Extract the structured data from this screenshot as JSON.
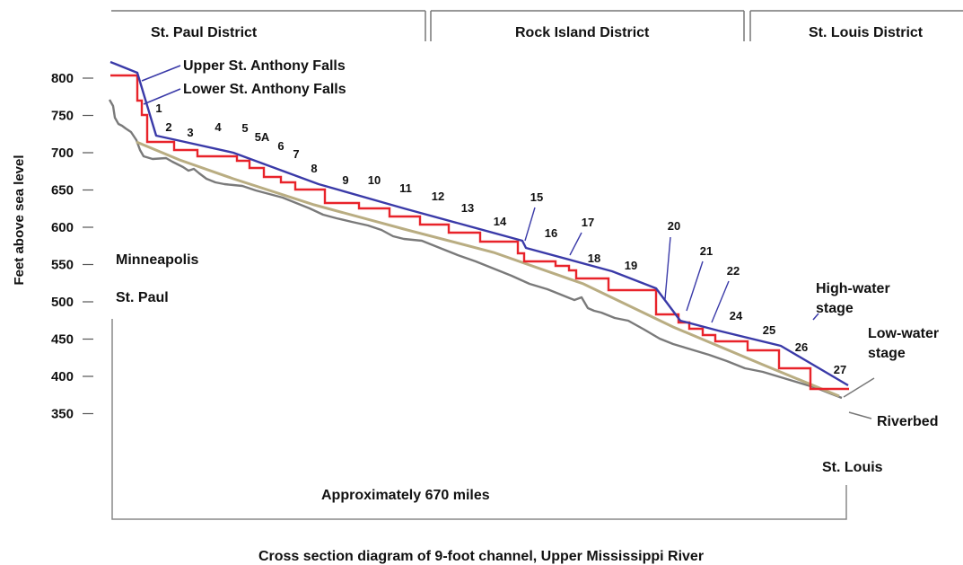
{
  "districts": [
    "St. Paul District",
    "Rock Island District",
    "St. Louis District"
  ],
  "y_axis": {
    "label": "Feet above sea level",
    "ticks": [
      "800",
      "750",
      "700",
      "650",
      "600",
      "550",
      "500",
      "450",
      "400",
      "350"
    ]
  },
  "places": {
    "minneapolis": "Minneapolis",
    "st_paul": "St. Paul",
    "st_louis": "St. Louis"
  },
  "annotations": {
    "upper_falls": "Upper St. Anthony Falls",
    "lower_falls": "Lower St. Anthony Falls",
    "high_water": [
      "High-water",
      "stage"
    ],
    "low_water": [
      "Low-water",
      "stage"
    ],
    "riverbed": "Riverbed"
  },
  "locks": [
    "1",
    "2",
    "3",
    "4",
    "5",
    "5A",
    "6",
    "7",
    "8",
    "9",
    "10",
    "11",
    "12",
    "13",
    "14",
    "15",
    "16",
    "17",
    "18",
    "19",
    "20",
    "21",
    "22",
    "24",
    "25",
    "26",
    "27"
  ],
  "distance_label": "Approximately 670 miles",
  "caption": "Cross section diagram of 9-foot channel, Upper Mississippi River",
  "colors": {
    "high_water": "#3a3aa8",
    "low_water": "#b9ad82",
    "riverbed": "#7a7a7a",
    "pool_steps": "#e8232a",
    "frame": "#777777"
  }
}
